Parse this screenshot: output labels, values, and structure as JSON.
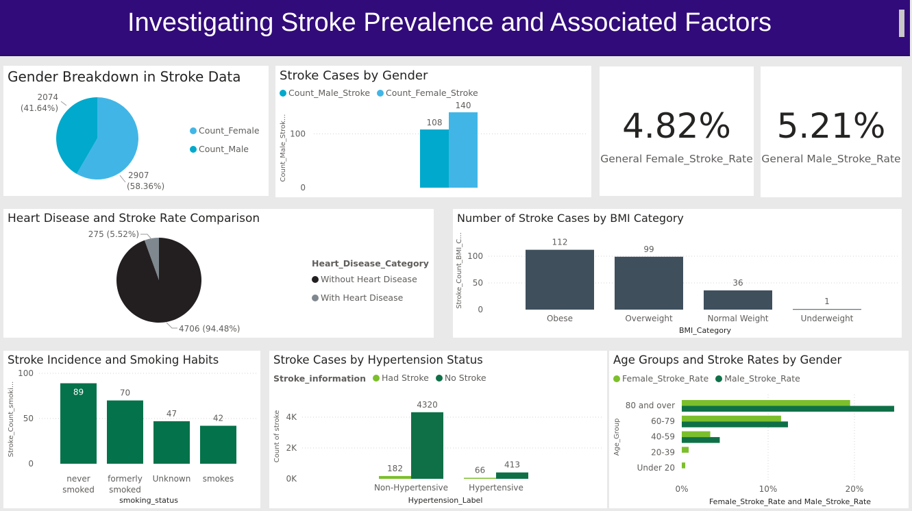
{
  "header": {
    "title": "Investigating Stroke Prevalence and Associated Factors"
  },
  "colors": {
    "header_bg": "#320b7a",
    "female_blue": "#41b6e6",
    "male_blue": "#01a9cc",
    "black": "#231f20",
    "gray": "#7f888f",
    "slate": "#3f4f5c",
    "dark_green": "#0f7047",
    "green_bar": "#04724a",
    "light_green": "#7cbf2c"
  },
  "gender_pie": {
    "title": "Gender Breakdown in Stroke Data",
    "legend": [
      "Count_Female",
      "Count_Male"
    ],
    "labels": {
      "male_value": "2074",
      "male_pct": "(41.64%)",
      "female_value": "2907",
      "female_pct": "(58.36%)"
    },
    "chart_data": {
      "type": "pie",
      "slices": [
        {
          "name": "Count_Female",
          "value": 2907,
          "percent": 58.36
        },
        {
          "name": "Count_Male",
          "value": 2074,
          "percent": 41.64
        }
      ]
    }
  },
  "gender_bars": {
    "title": "Stroke Cases by Gender",
    "legend": [
      "Count_Male_Stroke",
      "Count_Female_Stroke"
    ],
    "ylabel": "Count_Male_Strok...",
    "yticks": [
      "0",
      "100"
    ],
    "chart_data": {
      "type": "bar",
      "series": [
        {
          "name": "Count_Male_Stroke",
          "values": [
            108
          ]
        },
        {
          "name": "Count_Female_Stroke",
          "values": [
            140
          ]
        }
      ],
      "ylim": [
        0,
        150
      ]
    }
  },
  "kpi_female": {
    "value": "4.82%",
    "label": "General Female_Stroke_Rate"
  },
  "kpi_male": {
    "value": "5.21%",
    "label": "General Male_Stroke_Rate"
  },
  "heart_pie": {
    "title": "Heart Disease and Stroke Rate Comparison",
    "legend_title": "Heart_Disease_Category",
    "legend": [
      "Without Heart Disease",
      "With Heart Disease"
    ],
    "labels": {
      "with": "275 (5.52%)",
      "without": "4706 (94.48%)"
    },
    "chart_data": {
      "type": "pie",
      "slices": [
        {
          "name": "Without Heart Disease",
          "value": 4706,
          "percent": 94.48
        },
        {
          "name": "With Heart Disease",
          "value": 275,
          "percent": 5.52
        }
      ]
    }
  },
  "bmi": {
    "title": "Number of Stroke Cases by BMI Category",
    "xlabel": "BMI_Category",
    "ylabel": "Stroke_Count_BMI_C...",
    "yticks": [
      "0",
      "50",
      "100"
    ],
    "chart_data": {
      "type": "bar",
      "categories": [
        "Obese",
        "Overweight",
        "Normal Weight",
        "Underweight"
      ],
      "values": [
        112,
        99,
        36,
        1
      ],
      "ylim": [
        0,
        130
      ]
    }
  },
  "smoking": {
    "title": "Stroke Incidence and Smoking Habits",
    "xlabel": "smoking_status",
    "ylabel": "Stroke_Count_smoki...",
    "yticks": [
      "0",
      "50",
      "100"
    ],
    "categories_lines": [
      [
        "never",
        "smoked"
      ],
      [
        "formerly",
        "smoked"
      ],
      [
        "Unknown"
      ],
      [
        "smokes"
      ]
    ],
    "chart_data": {
      "type": "bar",
      "categories": [
        "never smoked",
        "formerly smoked",
        "Unknown",
        "smokes"
      ],
      "values": [
        89,
        70,
        47,
        42
      ],
      "ylim": [
        0,
        100
      ]
    }
  },
  "hypertension": {
    "title": "Stroke Cases by Hypertension Status",
    "legend_title": "Stroke_information",
    "legend": [
      "Had Stroke",
      "No Stroke"
    ],
    "xlabel": "Hypertension_Label",
    "ylabel": "Count of stroke",
    "yticks": [
      "0K",
      "2K",
      "4K"
    ],
    "chart_data": {
      "type": "bar",
      "categories": [
        "Non-Hypertensive",
        "Hypertensive"
      ],
      "series": [
        {
          "name": "Had Stroke",
          "values": [
            182,
            66
          ]
        },
        {
          "name": "No Stroke",
          "values": [
            4320,
            413
          ]
        }
      ],
      "ylim": [
        0,
        4500
      ]
    }
  },
  "age": {
    "title": "Age Groups and Stroke Rates by Gender",
    "legend": [
      "Female_Stroke_Rate",
      "Male_Stroke_Rate"
    ],
    "xlabel": "Female_Stroke_Rate and Male_Stroke_Rate",
    "ylabel": "Age_Group",
    "xticks": [
      "0%",
      "10%",
      "20%"
    ],
    "chart_data": {
      "type": "bar",
      "orientation": "horizontal",
      "categories": [
        "80 and over",
        "60-79",
        "40-59",
        "20-39",
        "Under 20"
      ],
      "series": [
        {
          "name": "Female_Stroke_Rate",
          "values": [
            19.5,
            11.5,
            3.3,
            0.8,
            0.4
          ]
        },
        {
          "name": "Male_Stroke_Rate",
          "values": [
            24.6,
            12.3,
            4.4,
            0,
            0
          ]
        }
      ],
      "xlim": [
        0,
        25
      ]
    }
  }
}
